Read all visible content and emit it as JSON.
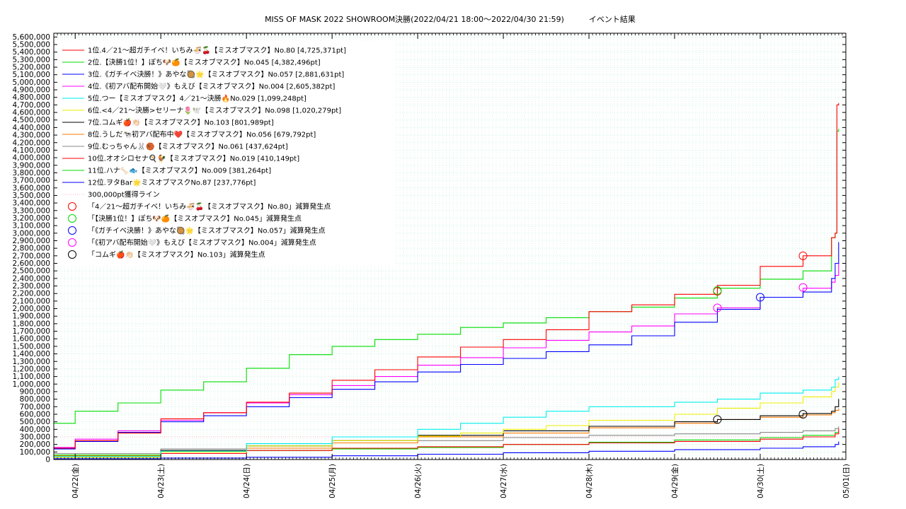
{
  "chart_data": {
    "type": "line",
    "title": "MISS OF MASK 2022 SHOWROOM決勝(2022/04/21 18:00～2022/04/30 21:59)          イベント結果",
    "xlabel": "",
    "ylabel": "",
    "x_ticks": [
      "04/22(金)",
      "04/23(土)",
      "04/24(日)",
      "04/25(月)",
      "04/26(火)",
      "04/27(水)",
      "04/28(木)",
      "04/29(金)",
      "04/30(土)",
      "05/01(日)"
    ],
    "xlim": [
      "2022/04/21 18:00",
      "2022/05/01 00:00"
    ],
    "ylim": [
      0,
      5650000
    ],
    "y_ticks": [
      0,
      100000,
      200000,
      300000,
      400000,
      500000,
      600000,
      700000,
      800000,
      900000,
      1000000,
      1100000,
      1200000,
      1300000,
      1400000,
      1500000,
      1600000,
      1700000,
      1800000,
      1900000,
      2000000,
      2100000,
      2200000,
      2300000,
      2400000,
      2500000,
      2600000,
      2700000,
      2800000,
      2900000,
      3000000,
      3100000,
      3200000,
      3300000,
      3400000,
      3500000,
      3600000,
      3700000,
      3800000,
      3900000,
      4000000,
      4100000,
      4200000,
      4300000,
      4400000,
      4500000,
      4600000,
      4700000,
      4800000,
      4900000,
      5000000,
      5100000,
      5200000,
      5300000,
      5400000,
      5500000,
      5600000
    ],
    "grid": true,
    "legend_position": "top-left",
    "series": [
      {
        "name": "1位.4／21～超ガチイベ！いちみ🍜🍒【ミスオブマスク】No.80 [4,725,371pt]",
        "color": "#ff0000",
        "x": [
          "04/21 18:00",
          "04/22 00:00",
          "04/22 12:00",
          "04/23 00:00",
          "04/23 12:00",
          "04/24 00:00",
          "04/24 12:00",
          "04/25 00:00",
          "04/25 12:00",
          "04/26 00:00",
          "04/26 12:00",
          "04/27 00:00",
          "04/27 12:00",
          "04/28 00:00",
          "04/28 12:00",
          "04/29 00:00",
          "04/29 12:00",
          "04/30 00:00",
          "04/30 12:00",
          "04/30 20:00",
          "04/30 21:00",
          "04/30 21:30",
          "04/30 21:59"
        ],
        "y": [
          150000,
          250000,
          350000,
          540000,
          620000,
          760000,
          880000,
          1050000,
          1190000,
          1360000,
          1490000,
          1590000,
          1720000,
          1960000,
          2050000,
          2190000,
          2310000,
          2560000,
          2700000,
          2940000,
          3000000,
          4700000,
          4725371
        ]
      },
      {
        "name": "2位.【決勝1位！】ぽち🐶🍊【ミスオブマスク】No.045 [4,382,496pt]",
        "color": "#00dd00",
        "x": [
          "04/21 18:00",
          "04/22 00:00",
          "04/22 12:00",
          "04/23 00:00",
          "04/23 12:00",
          "04/24 00:00",
          "04/24 12:00",
          "04/25 00:00",
          "04/25 12:00",
          "04/26 00:00",
          "04/26 12:00",
          "04/27 00:00",
          "04/27 12:00",
          "04/28 00:00",
          "04/28 12:00",
          "04/29 00:00",
          "04/29 12:00",
          "04/30 00:00",
          "04/30 12:00",
          "04/30 20:00",
          "04/30 21:00",
          "04/30 21:30",
          "04/30 21:59"
        ],
        "y": [
          480000,
          640000,
          750000,
          920000,
          1030000,
          1210000,
          1390000,
          1500000,
          1590000,
          1660000,
          1750000,
          1810000,
          1880000,
          1960000,
          2020000,
          2140000,
          2270000,
          2390000,
          2500000,
          2940000,
          3000000,
          4350000,
          4382496
        ]
      },
      {
        "name": "3位.《ガチイベ決勝！》あやな🥘🌟【ミスオブマスク】No.057 [2,881,631pt]",
        "color": "#0000ff",
        "x": [
          "04/21 18:00",
          "04/22 00:00",
          "04/22 12:00",
          "04/23 00:00",
          "04/23 12:00",
          "04/24 00:00",
          "04/24 12:00",
          "04/25 00:00",
          "04/25 12:00",
          "04/26 00:00",
          "04/26 12:00",
          "04/27 00:00",
          "04/27 12:00",
          "04/28 00:00",
          "04/28 12:00",
          "04/29 00:00",
          "04/29 12:00",
          "04/30 00:00",
          "04/30 12:00",
          "04/30 20:00",
          "04/30 21:00",
          "04/30 21:59"
        ],
        "y": [
          140000,
          240000,
          360000,
          500000,
          580000,
          700000,
          820000,
          930000,
          1030000,
          1160000,
          1260000,
          1340000,
          1430000,
          1520000,
          1640000,
          1820000,
          1990000,
          2150000,
          2220000,
          2400000,
          2600000,
          2881631
        ]
      },
      {
        "name": "4位.《初アバ配布開始🤍》もえび【ミスオブマスク】No.004 [2,605,382pt]",
        "color": "#ff00ff",
        "x": [
          "04/21 18:00",
          "04/22 00:00",
          "04/22 12:00",
          "04/23 00:00",
          "04/23 12:00",
          "04/24 00:00",
          "04/24 12:00",
          "04/25 00:00",
          "04/25 12:00",
          "04/26 00:00",
          "04/26 12:00",
          "04/27 00:00",
          "04/27 12:00",
          "04/28 00:00",
          "04/28 12:00",
          "04/29 00:00",
          "04/29 12:00",
          "04/30 00:00",
          "04/30 12:00",
          "04/30 20:00",
          "04/30 21:00",
          "04/30 21:59"
        ],
        "y": [
          160000,
          270000,
          380000,
          520000,
          620000,
          750000,
          860000,
          980000,
          1100000,
          1250000,
          1350000,
          1480000,
          1580000,
          1690000,
          1770000,
          1930000,
          2010000,
          2150000,
          2270000,
          2350000,
          2440000,
          2605382
        ]
      },
      {
        "name": "5位.つー【ミスオブマスク】4／21～決勝🔥No.029 [1,099,248pt]",
        "color": "#00eeee",
        "x": [
          "04/21 18:00",
          "04/23 00:00",
          "04/24 00:00",
          "04/25 00:00",
          "04/26 00:00",
          "04/26 12:00",
          "04/27 00:00",
          "04/27 12:00",
          "04/28 00:00",
          "04/29 00:00",
          "04/29 12:00",
          "04/30 00:00",
          "04/30 12:00",
          "04/30 20:00",
          "04/30 21:00",
          "04/30 21:59"
        ],
        "y": [
          40000,
          110000,
          210000,
          300000,
          400000,
          480000,
          560000,
          640000,
          700000,
          760000,
          800000,
          880000,
          920000,
          960000,
          1060000,
          1099248
        ]
      },
      {
        "name": "6位.<4／21～決勝>セリーナ🌷🕊️【ミスオブマスク】No.098 [1,020,279pt]",
        "color": "#eeee00",
        "x": [
          "04/21 18:00",
          "04/23 00:00",
          "04/24 00:00",
          "04/25 00:00",
          "04/26 00:00",
          "04/26 12:00",
          "04/27 00:00",
          "04/27 12:00",
          "04/28 00:00",
          "04/29 00:00",
          "04/29 12:00",
          "04/30 00:00",
          "04/30 12:00",
          "04/30 20:00",
          "04/30 21:00",
          "04/30 21:59"
        ],
        "y": [
          30000,
          100000,
          180000,
          250000,
          310000,
          350000,
          400000,
          450000,
          520000,
          600000,
          680000,
          750000,
          830000,
          900000,
          960000,
          1020279
        ]
      },
      {
        "name": "7位.コムギ🍎👏🏻【ミスオブマスク】No.103 [801,989pt]",
        "color": "#000000",
        "x": [
          "04/21 18:00",
          "04/23 00:00",
          "04/24 00:00",
          "04/25 00:00",
          "04/26 00:00",
          "04/27 00:00",
          "04/28 00:00",
          "04/29 00:00",
          "04/29 12:00",
          "04/30 00:00",
          "04/30 12:00",
          "04/30 20:00",
          "04/30 21:00",
          "04/30 21:59"
        ],
        "y": [
          30000,
          120000,
          180000,
          250000,
          320000,
          380000,
          440000,
          500000,
          530000,
          580000,
          610000,
          640000,
          700000,
          801989
        ]
      },
      {
        "name": "8位.うしだ🐄初アバ配布中❤️【ミスオブマスク】No.056 [679,792pt]",
        "color": "#ff7700",
        "x": [
          "04/21 18:00",
          "04/23 00:00",
          "04/24 00:00",
          "04/25 00:00",
          "04/26 00:00",
          "04/27 00:00",
          "04/28 00:00",
          "04/29 00:00",
          "04/29 12:00",
          "04/30 00:00",
          "04/30 12:00",
          "04/30 20:00",
          "04/30 21:00",
          "04/30 21:59"
        ],
        "y": [
          50000,
          100000,
          150000,
          220000,
          300000,
          350000,
          420000,
          480000,
          530000,
          560000,
          590000,
          620000,
          650000,
          679792
        ]
      },
      {
        "name": "9位.むっちゃん🐰🏀【ミスオブマスク】No.061 [437,624pt]",
        "color": "#888888",
        "x": [
          "04/21 18:00",
          "04/23 00:00",
          "04/24 00:00",
          "04/25 00:00",
          "04/26 00:00",
          "04/27 00:00",
          "04/28 00:00",
          "04/29 00:00",
          "04/30 00:00",
          "04/30 12:00",
          "04/30 21:00",
          "04/30 21:59"
        ],
        "y": [
          80000,
          140000,
          180000,
          220000,
          250000,
          290000,
          320000,
          340000,
          360000,
          380000,
          410000,
          437624
        ]
      },
      {
        "name": "10位.オオシロセナ🍳🐓【ミスオブマスク】No.019 [410,149pt]",
        "color": "#ff0000",
        "x": [
          "04/21 18:00",
          "04/23 00:00",
          "04/24 00:00",
          "04/25 00:00",
          "04/26 00:00",
          "04/27 00:00",
          "04/28 00:00",
          "04/29 00:00",
          "04/30 00:00",
          "04/30 12:00",
          "04/30 21:00",
          "04/30 21:59"
        ],
        "y": [
          30000,
          80000,
          120000,
          150000,
          170000,
          200000,
          220000,
          240000,
          270000,
          300000,
          340000,
          410149
        ]
      },
      {
        "name": "11位.ハナ🦴🐟【ミスオブマスク】No.009 [381,264pt]",
        "color": "#00dd00",
        "x": [
          "04/21 18:00",
          "04/23 00:00",
          "04/24 00:00",
          "04/25 00:00",
          "04/26 00:00",
          "04/27 00:00",
          "04/28 00:00",
          "04/29 00:00",
          "04/30 00:00",
          "04/30 12:00",
          "04/30 21:00",
          "04/30 21:59"
        ],
        "y": [
          60000,
          100000,
          120000,
          140000,
          160000,
          200000,
          230000,
          260000,
          290000,
          320000,
          360000,
          381264
        ]
      },
      {
        "name": "12位.ヲタBar🌟ミスオブマスクNo.87 [237,776pt]",
        "color": "#0000ff",
        "x": [
          "04/21 18:00",
          "04/23 00:00",
          "04/24 00:00",
          "04/25 00:00",
          "04/26 00:00",
          "04/27 00:00",
          "04/28 00:00",
          "04/29 00:00",
          "04/30 00:00",
          "04/30 12:00",
          "04/30 21:00",
          "04/30 21:59"
        ],
        "y": [
          10000,
          20000,
          30000,
          50000,
          70000,
          90000,
          110000,
          130000,
          150000,
          170000,
          200000,
          237776
        ]
      }
    ],
    "reference_lines": [
      {
        "name": "300,000pt獲得ライン",
        "y": 300000,
        "color": "#ffb6c1",
        "style": "dotted"
      }
    ],
    "markers": [
      {
        "name": "「4／21～超ガチイベ！いちみ🍜🍒【ミスオブマスク】No.80」減算発生点",
        "color": "#ff0000",
        "points": [
          {
            "x": "04/29 12:00",
            "y": 2230000
          },
          {
            "x": "04/30 12:00",
            "y": 2700000
          }
        ]
      },
      {
        "name": "「【決勝1位！】ぽち🐶🍊【ミスオブマスク】No.045」減算発生点",
        "color": "#00dd00",
        "points": [
          {
            "x": "04/29 12:00",
            "y": 2240000
          }
        ]
      },
      {
        "name": "「《ガチイベ決勝！》あやな🥘🌟【ミスオブマスク】No.057」減算発生点",
        "color": "#0000ff",
        "points": [
          {
            "x": "04/30 00:00",
            "y": 2150000
          }
        ]
      },
      {
        "name": "「《初アバ配布開始🤍》もえび【ミスオブマスク】No.004」減算発生点",
        "color": "#ff00ff",
        "points": [
          {
            "x": "04/29 12:00",
            "y": 2010000
          },
          {
            "x": "04/30 12:00",
            "y": 2280000
          }
        ]
      },
      {
        "name": "「コムギ🍎👏🏻【ミスオブマスク】No.103」減算発生点",
        "color": "#000000",
        "points": [
          {
            "x": "04/29 12:00",
            "y": 530000
          },
          {
            "x": "04/30 12:00",
            "y": 600000
          }
        ]
      }
    ]
  }
}
